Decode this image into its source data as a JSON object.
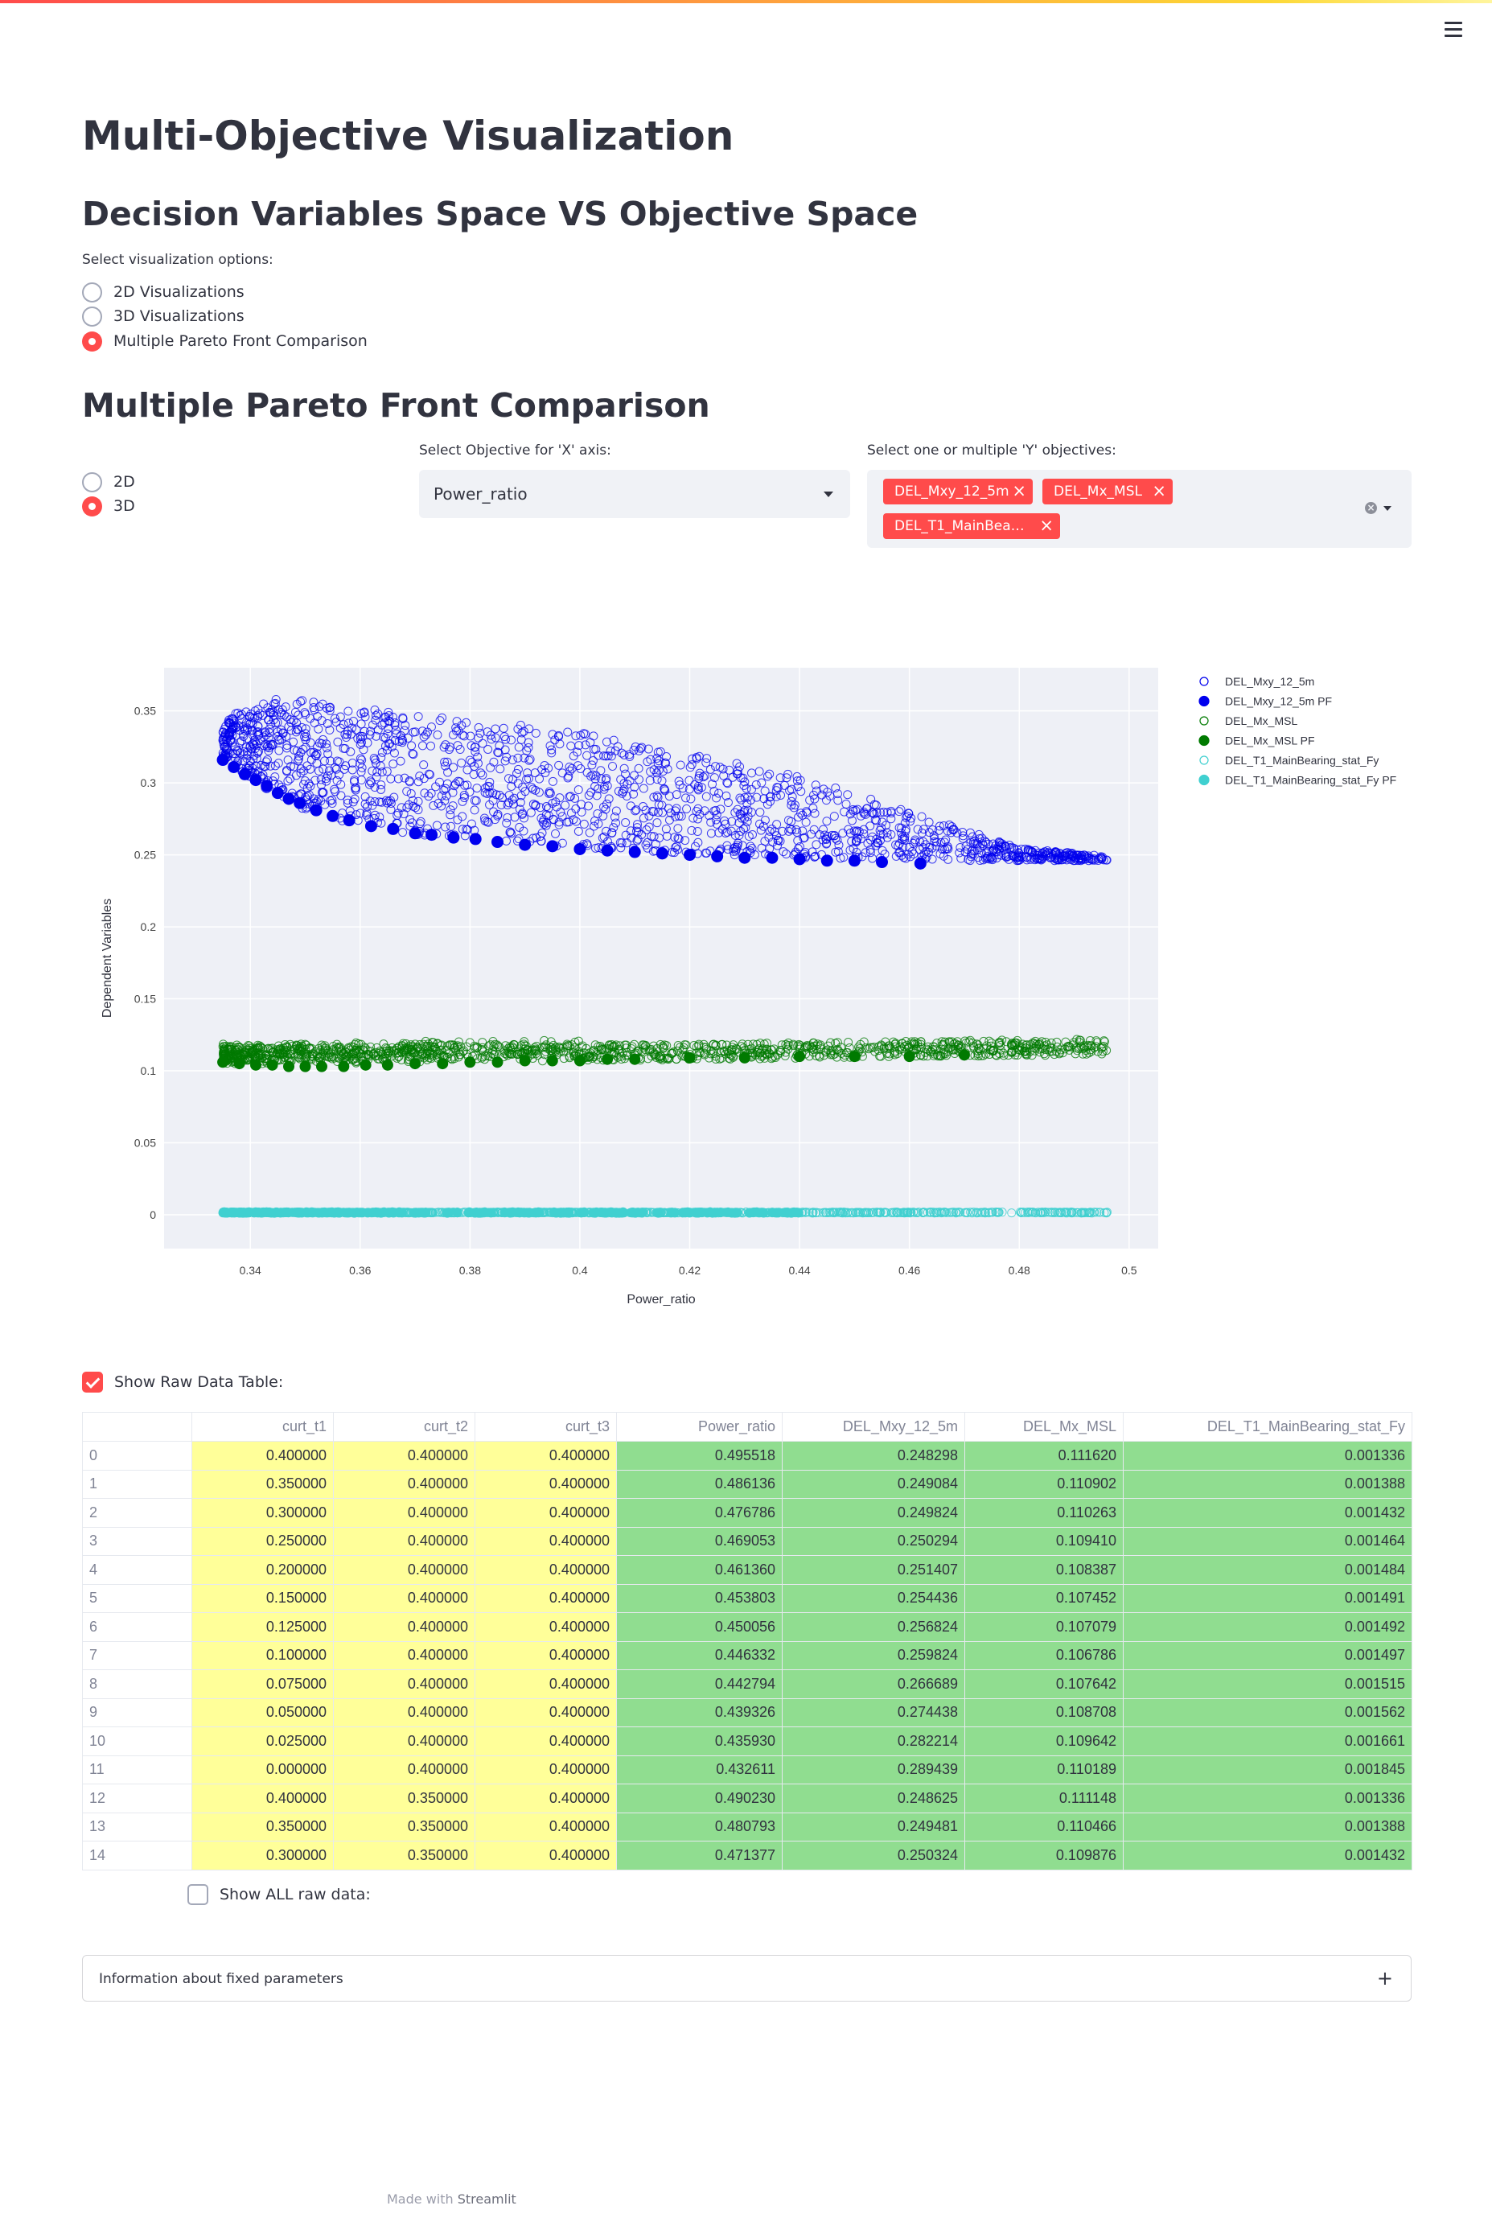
{
  "header": {
    "menu_icon": "hamburger-icon"
  },
  "page": {
    "title": "Multi-Objective Visualization",
    "subtitle": "Decision Variables Space VS Objective Space",
    "viz_options_label": "Select visualization options:",
    "viz_options": [
      "2D Visualizations",
      "3D Visualizations",
      "Multiple Pareto Front Comparison"
    ],
    "viz_selected": "Multiple Pareto Front Comparison",
    "section_title": "Multiple Pareto Front Comparison"
  },
  "controls": {
    "dim_options": [
      "2D",
      "3D"
    ],
    "dim_selected": "3D",
    "x_label": "Select Objective for 'X' axis:",
    "x_value": "Power_ratio",
    "y_label": "Select one or multiple 'Y' objectives:",
    "y_chips": [
      "DEL_Mxy_12_5m",
      "DEL_Mx_MSL",
      "DEL_T1_MainBeari..."
    ]
  },
  "chart_data": {
    "type": "scatter",
    "title": "",
    "xlabel": "Power_ratio",
    "ylabel": "Dependent Variables",
    "xlim": [
      0.3243,
      0.5053
    ],
    "ylim": [
      -0.0235,
      0.38
    ],
    "xticks": [
      "0.34",
      "0.36",
      "0.38",
      "0.4",
      "0.42",
      "0.44",
      "0.46",
      "0.48",
      "0.5"
    ],
    "yticks": [
      "0",
      "0.05",
      "0.1",
      "0.15",
      "0.2",
      "0.25",
      "0.3",
      "0.35"
    ],
    "legend_position": "top-right",
    "grid": true,
    "colors": {
      "mxy": "#0000ee",
      "mx": "#007a00",
      "fy": "#40d0d0",
      "plot_bg": "#eef0f6"
    },
    "series": [
      {
        "name": "DEL_Mxy_12_5m",
        "marker": "open",
        "color": "#0000ee",
        "x_range": [
          0.335,
          0.496
        ],
        "y_front": [
          [
            0.335,
            0.316
          ],
          [
            0.34,
            0.301
          ],
          [
            0.345,
            0.289
          ],
          [
            0.35,
            0.279
          ],
          [
            0.36,
            0.268
          ],
          [
            0.37,
            0.262
          ],
          [
            0.38,
            0.258
          ],
          [
            0.4,
            0.253
          ],
          [
            0.42,
            0.249
          ],
          [
            0.44,
            0.246
          ],
          [
            0.462,
            0.244
          ]
        ],
        "y_upper": [
          [
            0.335,
            0.345
          ],
          [
            0.345,
            0.36
          ],
          [
            0.36,
            0.352
          ],
          [
            0.38,
            0.345
          ],
          [
            0.4,
            0.335
          ],
          [
            0.42,
            0.32
          ],
          [
            0.44,
            0.305
          ],
          [
            0.46,
            0.28
          ],
          [
            0.48,
            0.255
          ],
          [
            0.496,
            0.249
          ]
        ]
      },
      {
        "name": "DEL_Mxy_12_5m PF",
        "marker": "filled",
        "color": "#0000ee",
        "x": [
          0.335,
          0.337,
          0.339,
          0.341,
          0.343,
          0.345,
          0.347,
          0.349,
          0.352,
          0.355,
          0.358,
          0.362,
          0.366,
          0.37,
          0.373,
          0.377,
          0.381,
          0.385,
          0.39,
          0.395,
          0.4,
          0.405,
          0.41,
          0.415,
          0.42,
          0.425,
          0.43,
          0.435,
          0.44,
          0.445,
          0.45,
          0.455,
          0.462
        ],
        "y": [
          0.316,
          0.311,
          0.306,
          0.302,
          0.298,
          0.293,
          0.289,
          0.286,
          0.281,
          0.277,
          0.274,
          0.27,
          0.268,
          0.265,
          0.264,
          0.262,
          0.261,
          0.259,
          0.257,
          0.256,
          0.254,
          0.253,
          0.252,
          0.251,
          0.25,
          0.249,
          0.248,
          0.248,
          0.247,
          0.246,
          0.246,
          0.245,
          0.244
        ]
      },
      {
        "name": "DEL_Mx_MSL",
        "marker": "open",
        "color": "#007a00",
        "x_range": [
          0.335,
          0.496
        ],
        "y_band": [
          0.103,
          0.118
        ]
      },
      {
        "name": "DEL_Mx_MSL PF",
        "marker": "filled",
        "color": "#007a00",
        "x": [
          0.335,
          0.338,
          0.341,
          0.344,
          0.347,
          0.35,
          0.353,
          0.357,
          0.361,
          0.365,
          0.37,
          0.375,
          0.38,
          0.385,
          0.39,
          0.395,
          0.4,
          0.405,
          0.41,
          0.42,
          0.43,
          0.44,
          0.45,
          0.46,
          0.47
        ],
        "y": [
          0.106,
          0.105,
          0.104,
          0.104,
          0.103,
          0.103,
          0.103,
          0.103,
          0.104,
          0.104,
          0.105,
          0.105,
          0.106,
          0.106,
          0.107,
          0.107,
          0.107,
          0.108,
          0.108,
          0.109,
          0.109,
          0.11,
          0.11,
          0.11,
          0.111
        ]
      },
      {
        "name": "DEL_T1_MainBearing_stat_Fy",
        "marker": "open",
        "color": "#40d0d0",
        "x_range": [
          0.335,
          0.496
        ],
        "y_band": [
          0.0012,
          0.0019
        ]
      },
      {
        "name": "DEL_T1_MainBearing_stat_Fy PF",
        "marker": "filled",
        "color": "#40d0d0",
        "x_range": [
          0.335,
          0.44
        ],
        "y_band": [
          0.0013,
          0.0018
        ]
      }
    ]
  },
  "table": {
    "show_label": "Show Raw Data Table:",
    "columns": [
      "",
      "curt_t1",
      "curt_t2",
      "curt_t3",
      "Power_ratio",
      "DEL_Mxy_12_5m",
      "DEL_Mx_MSL",
      "DEL_T1_MainBearing_stat_Fy"
    ],
    "rows": [
      [
        "0",
        "0.400000",
        "0.400000",
        "0.400000",
        "0.495518",
        "0.248298",
        "0.111620",
        "0.001336"
      ],
      [
        "1",
        "0.350000",
        "0.400000",
        "0.400000",
        "0.486136",
        "0.249084",
        "0.110902",
        "0.001388"
      ],
      [
        "2",
        "0.300000",
        "0.400000",
        "0.400000",
        "0.476786",
        "0.249824",
        "0.110263",
        "0.001432"
      ],
      [
        "3",
        "0.250000",
        "0.400000",
        "0.400000",
        "0.469053",
        "0.250294",
        "0.109410",
        "0.001464"
      ],
      [
        "4",
        "0.200000",
        "0.400000",
        "0.400000",
        "0.461360",
        "0.251407",
        "0.108387",
        "0.001484"
      ],
      [
        "5",
        "0.150000",
        "0.400000",
        "0.400000",
        "0.453803",
        "0.254436",
        "0.107452",
        "0.001491"
      ],
      [
        "6",
        "0.125000",
        "0.400000",
        "0.400000",
        "0.450056",
        "0.256824",
        "0.107079",
        "0.001492"
      ],
      [
        "7",
        "0.100000",
        "0.400000",
        "0.400000",
        "0.446332",
        "0.259824",
        "0.106786",
        "0.001497"
      ],
      [
        "8",
        "0.075000",
        "0.400000",
        "0.400000",
        "0.442794",
        "0.266689",
        "0.107642",
        "0.001515"
      ],
      [
        "9",
        "0.050000",
        "0.400000",
        "0.400000",
        "0.439326",
        "0.274438",
        "0.108708",
        "0.001562"
      ],
      [
        "10",
        "0.025000",
        "0.400000",
        "0.400000",
        "0.435930",
        "0.282214",
        "0.109642",
        "0.001661"
      ],
      [
        "11",
        "0.000000",
        "0.400000",
        "0.400000",
        "0.432611",
        "0.289439",
        "0.110189",
        "0.001845"
      ],
      [
        "12",
        "0.400000",
        "0.350000",
        "0.400000",
        "0.490230",
        "0.248625",
        "0.111148",
        "0.001336"
      ],
      [
        "13",
        "0.350000",
        "0.350000",
        "0.400000",
        "0.480793",
        "0.249481",
        "0.110466",
        "0.001388"
      ],
      [
        "14",
        "0.300000",
        "0.350000",
        "0.400000",
        "0.471377",
        "0.250324",
        "0.109876",
        "0.001432"
      ]
    ],
    "show_all_label": "Show ALL raw data:",
    "colors": {
      "input_cols": "#ffff99",
      "output_cols": "#90dd90"
    }
  },
  "expander": {
    "label": "Information about fixed parameters",
    "icon": "plus-icon"
  },
  "footer": {
    "prefix": "Made with",
    "brand": "Streamlit"
  }
}
